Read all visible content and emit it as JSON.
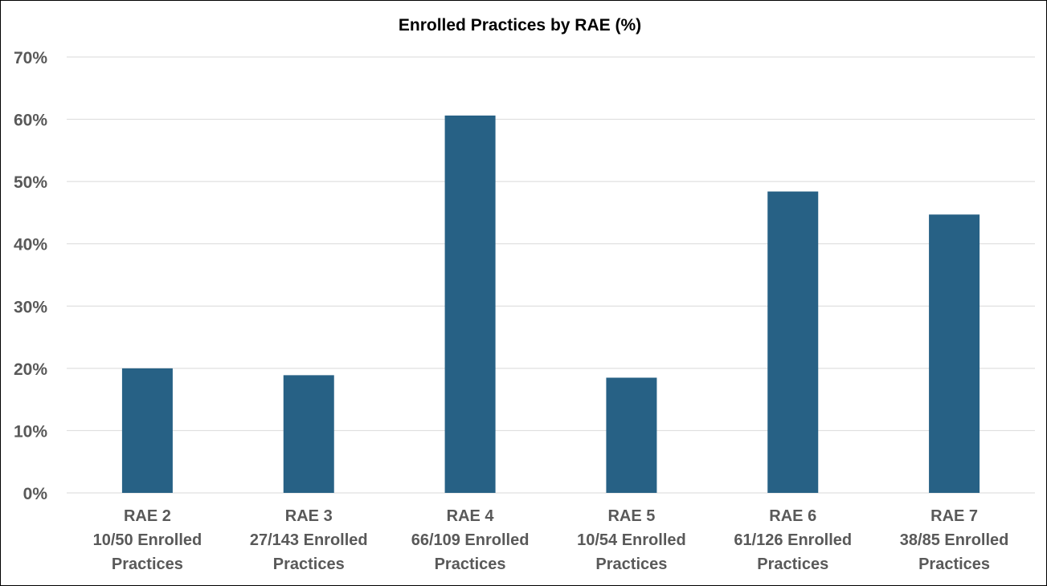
{
  "chart_data": {
    "type": "bar",
    "title": "Enrolled Practices by RAE (%)",
    "xlabel": "",
    "ylabel": "",
    "categories": [
      [
        "RAE 2",
        "10/50 Enrolled",
        "Practices"
      ],
      [
        "RAE 3",
        "27/143 Enrolled",
        "Practices"
      ],
      [
        "RAE 4",
        "66/109 Enrolled",
        "Practices"
      ],
      [
        "RAE 5",
        "10/54 Enrolled",
        "Practices"
      ],
      [
        "RAE 6",
        "61/126 Enrolled",
        "Practices"
      ],
      [
        "RAE 7",
        "38/85 Enrolled",
        "Practices"
      ]
    ],
    "values": [
      20.0,
      18.9,
      60.6,
      18.5,
      48.4,
      44.7
    ],
    "ylim": [
      0,
      70
    ],
    "yticks": [
      0,
      10,
      20,
      30,
      40,
      50,
      60,
      70
    ],
    "ytick_labels": [
      "0%",
      "10%",
      "20%",
      "30%",
      "40%",
      "50%",
      "60%",
      "70%"
    ],
    "grid": true,
    "legend": "none",
    "colors": {
      "bar": "#276185",
      "gridline": "#d9d9d9",
      "tick_text": "#595959",
      "title_text": "#000000"
    }
  }
}
